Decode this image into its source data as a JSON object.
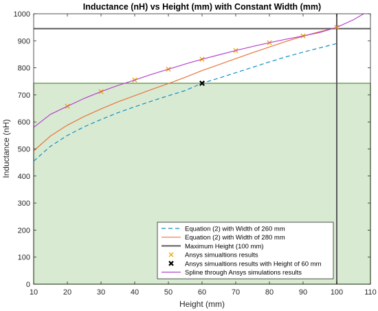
{
  "chart_data": {
    "type": "line",
    "title": "Inductance (nH) vs Height (mm) with Constant Width (mm)",
    "xlabel": "Height (mm)",
    "ylabel": "Inductance (nH)",
    "xlim": [
      10,
      110
    ],
    "ylim": [
      0,
      1000
    ],
    "xticks": [
      10,
      20,
      30,
      40,
      50,
      60,
      70,
      80,
      90,
      100,
      110
    ],
    "yticks": [
      0,
      100,
      200,
      300,
      400,
      500,
      600,
      700,
      800,
      900,
      1000
    ],
    "grid": false,
    "legend_position": "bottom-right",
    "shaded_region": {
      "x": [
        10,
        110
      ],
      "y": [
        0,
        743
      ],
      "color": "#d9ead3",
      "edge_color": "#4f8a2e"
    },
    "series": [
      {
        "name": "Equation (2) with Width of 260 mm",
        "style": "dashed",
        "color": "#0a8fc4",
        "x": [
          10,
          15,
          20,
          25,
          30,
          35,
          40,
          45,
          50,
          55,
          60,
          65,
          70,
          75,
          80,
          85,
          90,
          95,
          100
        ],
        "y": [
          455,
          510,
          550,
          582,
          609,
          634,
          656,
          677,
          697,
          716,
          743,
          762,
          782,
          802,
          822,
          841,
          858,
          874,
          890
        ]
      },
      {
        "name": "Equation (2) with Width of 280 mm",
        "style": "solid",
        "color": "#e8743b",
        "x": [
          10,
          15,
          20,
          25,
          30,
          35,
          40,
          45,
          50,
          55,
          60,
          65,
          70,
          75,
          80,
          85,
          90,
          95,
          100
        ],
        "y": [
          493,
          548,
          588,
          620,
          648,
          674,
          697,
          720,
          742,
          765,
          790,
          812,
          834,
          856,
          877,
          898,
          917,
          934,
          949
        ]
      },
      {
        "name": "Maximum Height (100 mm)",
        "style": "solid-thick",
        "color": "#595959",
        "vertical_x": 100,
        "horizontal_y": 945
      },
      {
        "name": "Ansys simualtions results",
        "style": "marker-x",
        "color": "#f2a900",
        "x": [
          20,
          30,
          40,
          50,
          60,
          70,
          80,
          90,
          100
        ],
        "y": [
          658,
          712,
          755,
          795,
          832,
          864,
          893,
          918,
          950
        ]
      },
      {
        "name": "Ansys simualtions results with Height of 60 mm",
        "style": "marker-bold-x",
        "color": "#000000",
        "x": [
          60
        ],
        "y": [
          743
        ]
      },
      {
        "name": "Spline through Ansys simulations results",
        "style": "solid",
        "color": "#b444c8",
        "x": [
          10,
          15,
          20,
          25,
          30,
          35,
          40,
          45,
          50,
          55,
          60,
          65,
          70,
          75,
          80,
          85,
          90,
          95,
          100,
          105,
          108
        ],
        "y": [
          580,
          628,
          658,
          687,
          712,
          735,
          755,
          776,
          795,
          814,
          832,
          848,
          864,
          879,
          893,
          906,
          918,
          931,
          950,
          978,
          1000
        ]
      }
    ]
  }
}
